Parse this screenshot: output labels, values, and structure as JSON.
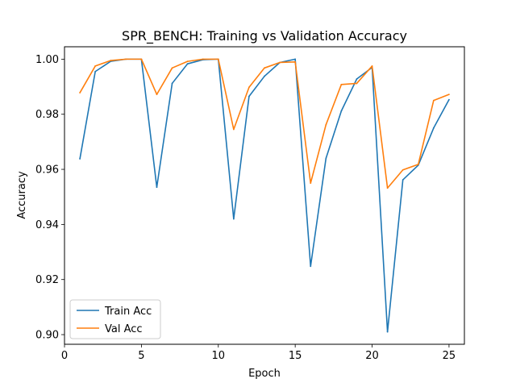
{
  "chart_data": {
    "type": "line",
    "title": "SPR_BENCH: Training vs Validation Accuracy",
    "xlabel": "Epoch",
    "ylabel": "Accuracy",
    "xlim": [
      0,
      26
    ],
    "ylim": [
      0.8965,
      1.0045
    ],
    "xticks": [
      0,
      5,
      10,
      15,
      20,
      25
    ],
    "yticks": [
      0.9,
      0.92,
      0.94,
      0.96,
      0.98,
      1.0
    ],
    "xtick_labels": [
      "0",
      "5",
      "10",
      "15",
      "20",
      "25"
    ],
    "ytick_labels": [
      "0.90",
      "0.92",
      "0.94",
      "0.96",
      "0.98",
      "1.00"
    ],
    "grid": false,
    "legend_position": "lower-left",
    "x": [
      1,
      2,
      3,
      4,
      5,
      6,
      7,
      8,
      9,
      10,
      11,
      12,
      13,
      14,
      15,
      16,
      17,
      18,
      19,
      20,
      21,
      22,
      23,
      24,
      25
    ],
    "series": [
      {
        "name": "Train Acc",
        "color": "#1f77b4",
        "values": [
          0.9638,
          0.9955,
          0.9992,
          1.0,
          1.0,
          0.9535,
          0.9912,
          0.9983,
          0.9998,
          1.0,
          0.942,
          0.9865,
          0.9938,
          0.9988,
          1.0,
          0.9248,
          0.964,
          0.9812,
          0.9928,
          0.997,
          0.901,
          0.9562,
          0.9615,
          0.975,
          0.9853
        ]
      },
      {
        "name": "Val Acc",
        "color": "#ff7f0e",
        "values": [
          0.9878,
          0.9975,
          0.9995,
          1.0,
          1.0,
          0.9872,
          0.9968,
          0.9992,
          1.0,
          1.0,
          0.9745,
          0.9898,
          0.9968,
          0.9988,
          0.999,
          0.955,
          0.9762,
          0.9908,
          0.9912,
          0.9975,
          0.9532,
          0.9598,
          0.9618,
          0.985,
          0.9872
        ]
      }
    ]
  }
}
